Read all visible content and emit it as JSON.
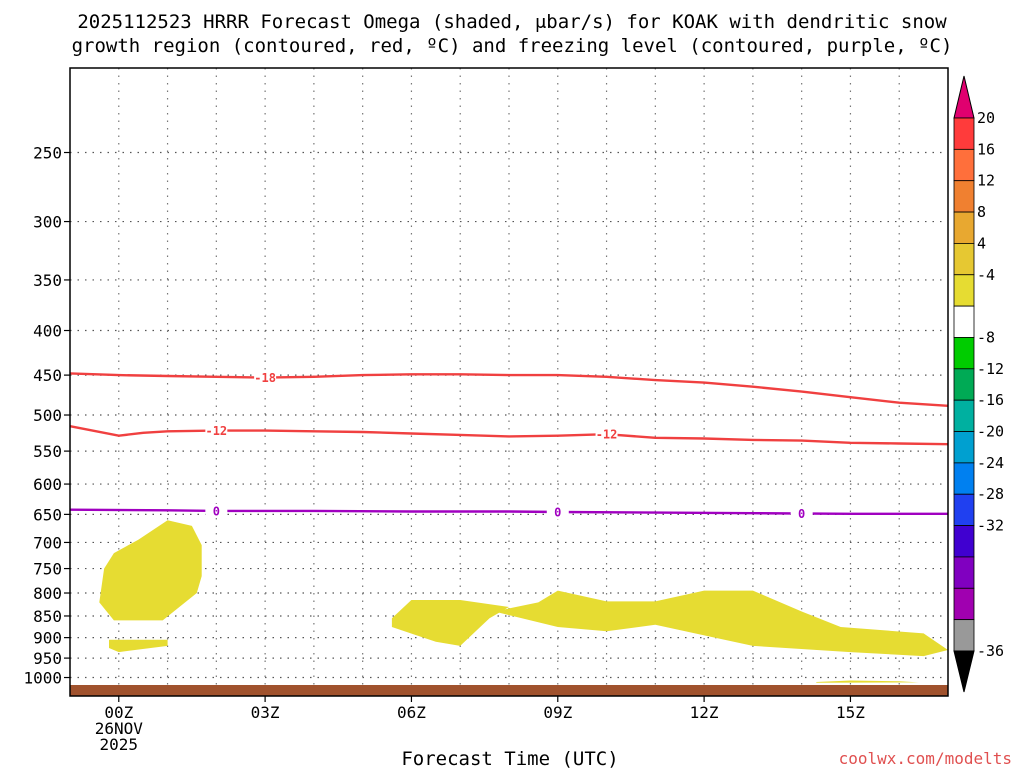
{
  "chart_data": {
    "type": "heatmap",
    "title_lines": [
      "2025112523 HRRR Forecast Omega (shaded, μbar/s) for KOAK with dendritic snow",
      "growth region (contoured, red, ºC) and freezing level (contoured, purple, ºC)"
    ],
    "xlabel": "Forecast Time (UTC)",
    "credit": "coolwx.com/modelts",
    "x_range": [
      -1,
      17
    ],
    "x_ticks": [
      {
        "x": 0,
        "lines": [
          "00Z",
          "26NOV",
          "2025"
        ]
      },
      {
        "x": 3,
        "lines": [
          "03Z"
        ]
      },
      {
        "x": 6,
        "lines": [
          "06Z"
        ]
      },
      {
        "x": 9,
        "lines": [
          "09Z"
        ]
      },
      {
        "x": 12,
        "lines": [
          "12Z"
        ]
      },
      {
        "x": 15,
        "lines": [
          "15Z"
        ]
      }
    ],
    "y_scale": "log-pressure",
    "y_range_hPa": [
      1050,
      200
    ],
    "y_ticks": [
      250,
      300,
      350,
      400,
      450,
      500,
      550,
      600,
      650,
      700,
      750,
      800,
      850,
      900,
      950,
      1000
    ],
    "grid": true,
    "ground_color": "#a0522d",
    "contours": [
      {
        "label": "-18",
        "color": "#f04040",
        "points": [
          [
            -1,
            448
          ],
          [
            0,
            450
          ],
          [
            1,
            451
          ],
          [
            2,
            452
          ],
          [
            3,
            453
          ],
          [
            4,
            452
          ],
          [
            5,
            450
          ],
          [
            6,
            449
          ],
          [
            7,
            449
          ],
          [
            8,
            450
          ],
          [
            9,
            450
          ],
          [
            10,
            452
          ],
          [
            11,
            456
          ],
          [
            12,
            459
          ],
          [
            13,
            464
          ],
          [
            14,
            470
          ],
          [
            15,
            477
          ],
          [
            16,
            484
          ],
          [
            17,
            488
          ]
        ],
        "label_x": [
          3
        ]
      },
      {
        "label": "-12",
        "color": "#f04040",
        "points": [
          [
            -1,
            515
          ],
          [
            0,
            528
          ],
          [
            0.5,
            524
          ],
          [
            1,
            522
          ],
          [
            2,
            521
          ],
          [
            3,
            521
          ],
          [
            4,
            522
          ],
          [
            5,
            523
          ],
          [
            6,
            525
          ],
          [
            7,
            527
          ],
          [
            8,
            529
          ],
          [
            9,
            528
          ],
          [
            10,
            526
          ],
          [
            11,
            531
          ],
          [
            12,
            532
          ],
          [
            13,
            534
          ],
          [
            14,
            535
          ],
          [
            15,
            538
          ],
          [
            16,
            539
          ],
          [
            17,
            540
          ]
        ],
        "label_x": [
          2,
          10
        ]
      },
      {
        "label": "0",
        "color": "#a000c0",
        "points": [
          [
            -1,
            642
          ],
          [
            1,
            643
          ],
          [
            2,
            644
          ],
          [
            4,
            644
          ],
          [
            6,
            645
          ],
          [
            8,
            645
          ],
          [
            9,
            646
          ],
          [
            11,
            647
          ],
          [
            13,
            648
          ],
          [
            15,
            649
          ],
          [
            17,
            649
          ]
        ],
        "label_x": [
          2,
          9,
          14
        ]
      }
    ],
    "shaded_regions": [
      {
        "level": "4 to 8",
        "color": "#e6dc32",
        "points": [
          [
            -0.3,
            750
          ],
          [
            -0.1,
            720
          ],
          [
            0.4,
            695
          ],
          [
            1,
            660
          ],
          [
            1.5,
            670
          ],
          [
            1.7,
            705
          ],
          [
            1.7,
            765
          ],
          [
            1.6,
            800
          ],
          [
            0.9,
            860
          ],
          [
            -0.1,
            860
          ],
          [
            -0.4,
            820
          ]
        ]
      },
      {
        "level": "4 to 8",
        "color": "#e6dc32",
        "points": [
          [
            -0.2,
            905
          ],
          [
            1,
            905
          ],
          [
            1,
            920
          ],
          [
            0,
            935
          ],
          [
            -0.2,
            925
          ]
        ]
      },
      {
        "level": "4 to 8",
        "color": "#e6dc32",
        "points": [
          [
            5.6,
            855
          ],
          [
            6,
            815
          ],
          [
            7,
            815
          ],
          [
            8,
            830
          ],
          [
            7.6,
            855
          ],
          [
            7,
            920
          ],
          [
            6.5,
            910
          ],
          [
            5.6,
            875
          ]
        ]
      },
      {
        "level": "4 to 8",
        "color": "#e6dc32",
        "points": [
          [
            7.7,
            840
          ],
          [
            8.6,
            820
          ],
          [
            9,
            795
          ],
          [
            10,
            818
          ],
          [
            11,
            818
          ],
          [
            12,
            795
          ],
          [
            13,
            795
          ],
          [
            14,
            840
          ],
          [
            14.8,
            875
          ],
          [
            16.5,
            890
          ],
          [
            17,
            930
          ],
          [
            16.5,
            945
          ],
          [
            15,
            935
          ],
          [
            13,
            920
          ],
          [
            11,
            870
          ],
          [
            10,
            885
          ],
          [
            9,
            875
          ]
        ]
      },
      {
        "level": "4 to 8",
        "color": "#e6dc32",
        "points": [
          [
            14.3,
            1012
          ],
          [
            15,
            1008
          ],
          [
            16,
            1010
          ],
          [
            16.4,
            1013
          ],
          [
            14.3,
            1014
          ]
        ]
      }
    ],
    "colorbar": {
      "arrow_top_color": "#e0006f",
      "arrow_bottom_color": "#000000",
      "segments": [
        {
          "color": "#ff3b3b"
        },
        {
          "color": "#ff6f3b"
        },
        {
          "color": "#f08030"
        },
        {
          "color": "#e8a830"
        },
        {
          "color": "#e6c832"
        },
        {
          "color": "#e6dc32"
        },
        {
          "color": "#ffffff"
        },
        {
          "color": "#00cc00"
        },
        {
          "color": "#00aa55"
        },
        {
          "color": "#00b0a0"
        },
        {
          "color": "#00a0d0"
        },
        {
          "color": "#0080f0"
        },
        {
          "color": "#2040f0"
        },
        {
          "color": "#4000d0"
        },
        {
          "color": "#8000c0"
        },
        {
          "color": "#a000b0"
        },
        {
          "color": "#999999"
        }
      ],
      "labels": [
        "20",
        "16",
        "12",
        "8",
        "4",
        "-4",
        "-8",
        "-12",
        "-16",
        "-20",
        "-24",
        "-28",
        "-32",
        "-36"
      ]
    }
  }
}
